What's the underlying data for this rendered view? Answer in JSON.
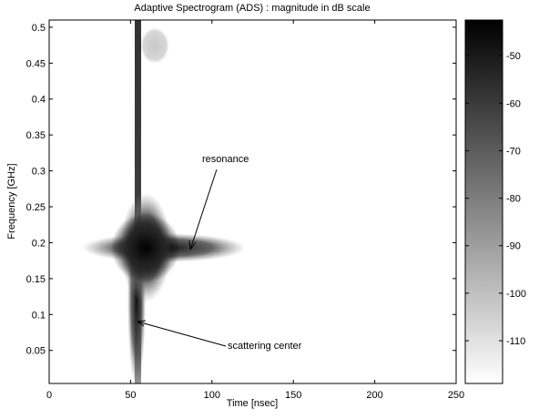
{
  "chart_data": {
    "type": "heatmap",
    "title": "Adaptive Spectrogram (ADS) : magnitude in dB scale",
    "xlabel": "Time [nsec]",
    "ylabel": "Frequency [GHz]",
    "xlim": [
      0,
      250
    ],
    "xticks": [
      0,
      50,
      100,
      150,
      200,
      250
    ],
    "ylim": [
      0.004,
      0.51
    ],
    "yticks": [
      0.05,
      0.1,
      0.15,
      0.2,
      0.25,
      0.3,
      0.35,
      0.4,
      0.45,
      0.5
    ],
    "clim": [
      -119,
      -42.5
    ],
    "cticks": [
      -110,
      -100,
      -90,
      -80,
      -70,
      -60,
      -50
    ],
    "annotations": [
      "resonance",
      "scattering center"
    ]
  }
}
